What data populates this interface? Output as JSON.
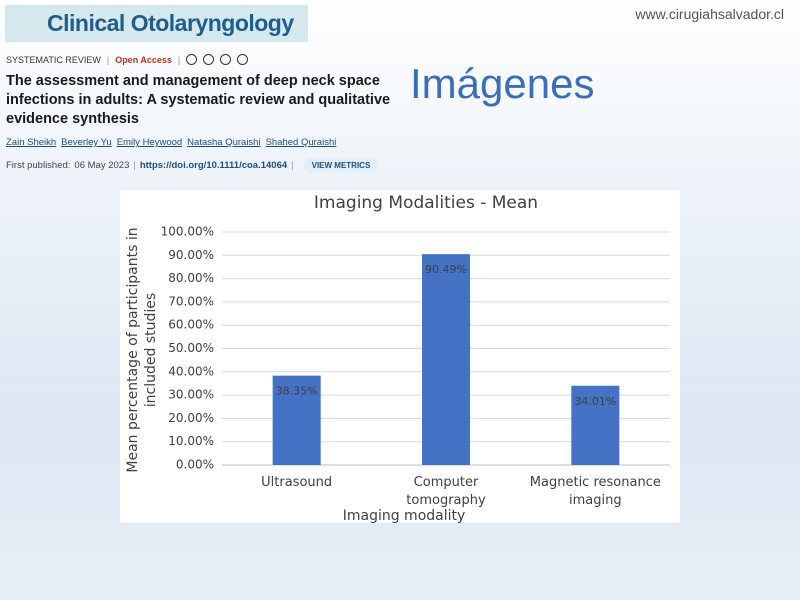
{
  "journal": "Clinical Otolaryngology",
  "website": "www.cirugiahsalvador.cl",
  "slide_title": "Imágenes",
  "article": {
    "section": "SYSTEMATIC REVIEW",
    "access": "Open Access",
    "title": "The assessment and management of deep neck space infections in adults: A systematic review and qualitative evidence synthesis",
    "authors": [
      "Zain Sheikh",
      "Beverley Yu",
      "Emily Heywood",
      "Natasha Quraishi",
      "Shahed Quraishi"
    ],
    "first_published_label": "First published:",
    "date": "06 May 2023",
    "doi": "https://doi.org/10.1111/coa.14064",
    "metrics": "VIEW METRICS"
  },
  "chart_data": {
    "type": "bar",
    "title": "Imaging Modalities - Mean",
    "x_label": "Imaging modality",
    "y_label": "Mean percentage of participants in included studies",
    "categories": [
      "Ultrasound",
      "Computer tomography",
      "Magnetic resonance imaging"
    ],
    "values": [
      38.35,
      90.49,
      34.01
    ],
    "value_labels": [
      "38.35%",
      "90.49%",
      "34.01%"
    ],
    "color": "#4472c4",
    "ylim": [
      0,
      100
    ],
    "yticks": [
      {
        "value": 0,
        "label": "0.00%"
      },
      {
        "value": 10,
        "label": "10.00%"
      },
      {
        "value": 20,
        "label": "20.00%"
      },
      {
        "value": 30,
        "label": "30.00%"
      },
      {
        "value": 40,
        "label": "40.00%"
      },
      {
        "value": 50,
        "label": "50.00%"
      },
      {
        "value": 60,
        "label": "60.00%"
      },
      {
        "value": 70,
        "label": "70.00%"
      },
      {
        "value": 80,
        "label": "80.00%"
      },
      {
        "value": 90,
        "label": "90.00%"
      },
      {
        "value": 100,
        "label": "100.00%"
      }
    ],
    "grid": true
  }
}
